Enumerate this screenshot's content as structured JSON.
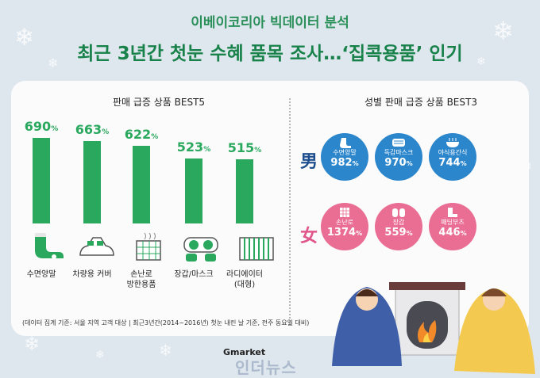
{
  "header": {
    "subtitle": "이베이코리아 빅데이터 분석",
    "title": "최근 3년간 첫눈 수혜 품목 조사…‘집콕용품’ 인기"
  },
  "left": {
    "section_title": "판매 급증 상품 BEST5",
    "unit": "%",
    "products": [
      {
        "label": "수면양말",
        "value": 690,
        "icon": "sleep-socks-icon"
      },
      {
        "label": "차량용 커버",
        "value": 663,
        "icon": "car-cover-icon"
      },
      {
        "label": "손난로\n방한용품",
        "value": 622,
        "icon": "hand-warmer-icon"
      },
      {
        "label": "장갑/마스크",
        "value": 523,
        "icon": "gloves-mask-icon"
      },
      {
        "label": "라디에이터\n(대형)",
        "value": 515,
        "icon": "radiator-icon"
      }
    ],
    "footnote": "(데이터 집계 기준: 서울 지역 고객 대상 | 최근3년간(2014~2016년) 첫눈 내린 날 기준, 전주 동요일 대비)"
  },
  "right": {
    "section_title": "성별 판매 급증 상품 BEST3",
    "male_label": "男",
    "female_label": "女",
    "male": [
      {
        "label": "수면양말",
        "value": "982",
        "icon": "sock-icon"
      },
      {
        "label": "독감마스크",
        "value": "970",
        "icon": "mask-icon"
      },
      {
        "label": "야식용간식",
        "value": "744",
        "icon": "snack-bowl-icon"
      }
    ],
    "female": [
      {
        "label": "손난로",
        "value": "1374",
        "icon": "hand-warmer-icon"
      },
      {
        "label": "장갑",
        "value": "559",
        "icon": "mittens-icon"
      },
      {
        "label": "패딩부츠",
        "value": "446",
        "icon": "boots-icon"
      }
    ],
    "unit": "%"
  },
  "footer": {
    "logo": "Gmarket",
    "watermark": "인더뉴스"
  },
  "colors": {
    "green": "#2aa85e",
    "male": "#2c86cc",
    "female": "#ea6d94",
    "background": "#dfe7ee"
  },
  "chart_data": {
    "type": "bar",
    "categories": [
      "수면양말",
      "차량용 커버",
      "손난로 방한용품",
      "장갑/마스크",
      "라디에이터 (대형)"
    ],
    "values": [
      690,
      663,
      622,
      523,
      515
    ],
    "title": "판매 급증 상품 BEST5",
    "ylim": [
      0,
      700
    ]
  }
}
